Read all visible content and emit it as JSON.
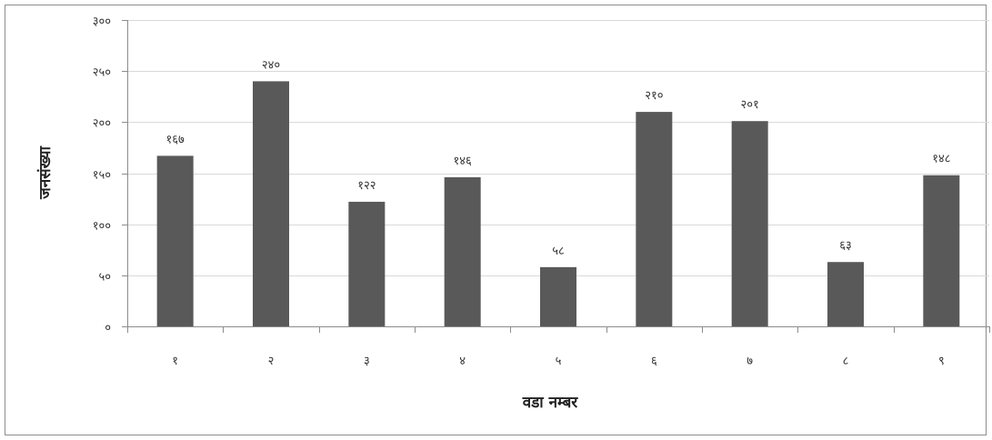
{
  "chart_data": {
    "type": "bar",
    "title": "",
    "xlabel": "वडा नम्बर",
    "ylabel": "जनसंख्या",
    "categories": [
      "१",
      "२",
      "३",
      "४",
      "५",
      "६",
      "७",
      "८",
      "९"
    ],
    "values": [
      167,
      240,
      122,
      146,
      58,
      210,
      201,
      63,
      148
    ],
    "data_labels": [
      "१६७",
      "२४०",
      "१२२",
      "१४६",
      "५८",
      "२१०",
      "२०१",
      "६३",
      "१४८"
    ],
    "ylim": [
      0,
      300
    ],
    "y_ticks": [
      0,
      50,
      100,
      150,
      200,
      250,
      300
    ],
    "y_tick_labels": [
      "०",
      "५०",
      "१००",
      "१५०",
      "२००",
      "२५०",
      "३००"
    ],
    "grid": true,
    "legend": "none",
    "colors": {
      "bar": "#595959",
      "grid": "#d9d9d9",
      "axis": "#8c8c8c"
    }
  }
}
